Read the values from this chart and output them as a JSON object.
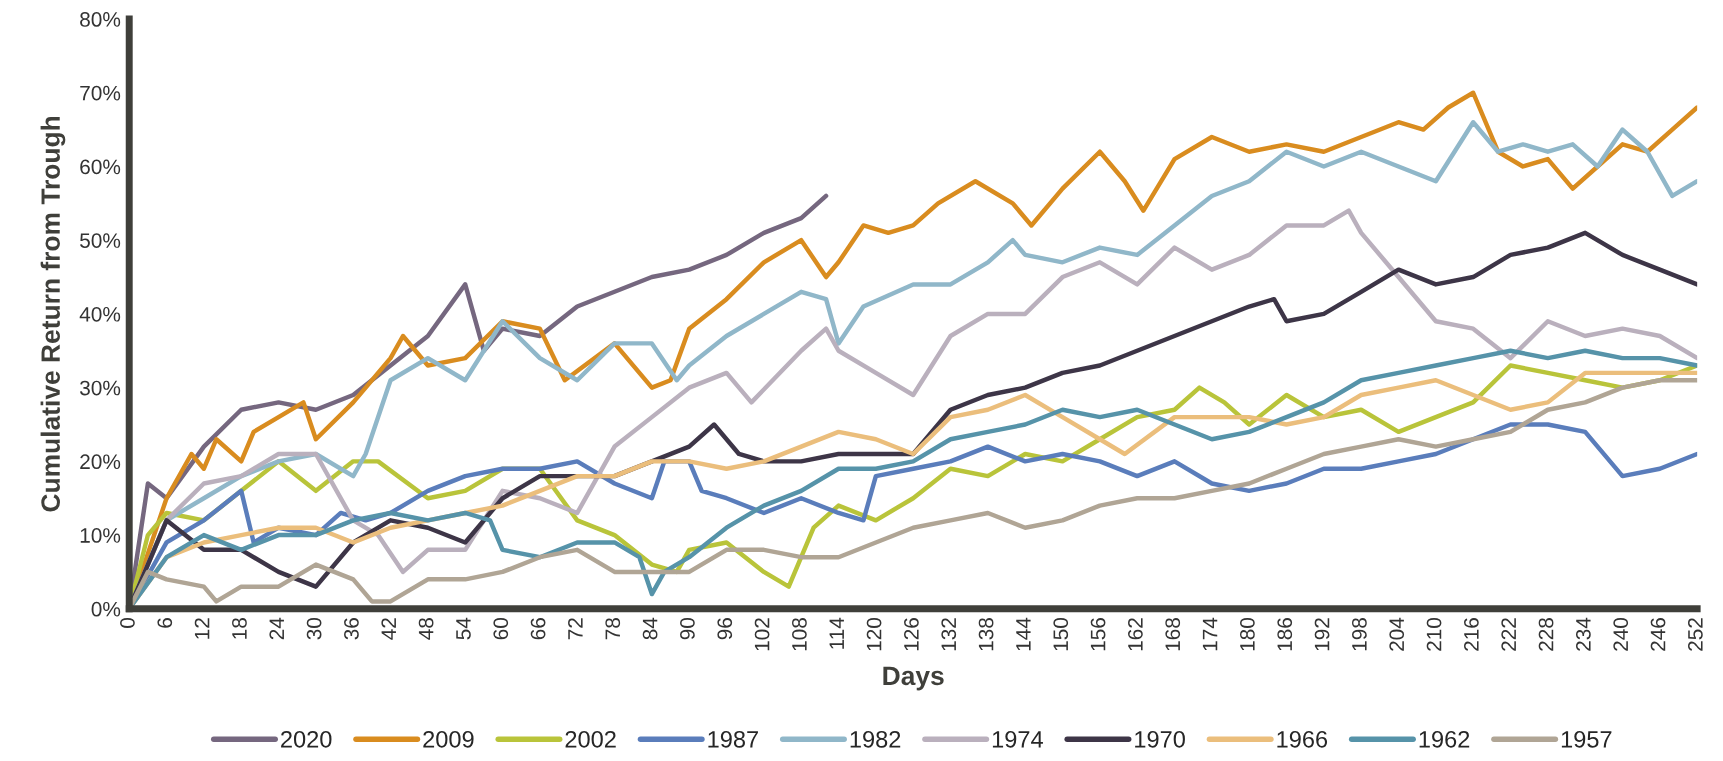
{
  "chart_data": {
    "type": "line",
    "xlabel": "Days",
    "ylabel": "Cumulative Return from Trough",
    "xlim": [
      0,
      252
    ],
    "xticks": [
      0,
      6,
      12,
      18,
      24,
      30,
      36,
      42,
      48,
      54,
      60,
      66,
      72,
      78,
      84,
      90,
      96,
      102,
      108,
      114,
      120,
      126,
      132,
      138,
      144,
      150,
      156,
      162,
      168,
      174,
      180,
      186,
      192,
      198,
      204,
      210,
      216,
      222,
      228,
      234,
      240,
      246,
      252
    ],
    "ylim": [
      0,
      80
    ],
    "yticks": [
      {
        "value": 0,
        "label": "0%"
      },
      {
        "value": 10,
        "label": "10%"
      },
      {
        "value": 20,
        "label": "20%"
      },
      {
        "value": 30,
        "label": "30%"
      },
      {
        "value": 40,
        "label": "40%"
      },
      {
        "value": 50,
        "label": "50%"
      },
      {
        "value": 60,
        "label": "60%"
      },
      {
        "value": 70,
        "label": "70%"
      },
      {
        "value": 80,
        "label": "80%"
      }
    ],
    "grid": false,
    "legend": "bottom",
    "marker": "none",
    "line_style": "solid",
    "series": [
      {
        "name": "2020",
        "color": "#75677f",
        "x": [
          0,
          3,
          6,
          12,
          18,
          24,
          30,
          36,
          42,
          48,
          54,
          57,
          60,
          66,
          72,
          78,
          84,
          90,
          96,
          102,
          108,
          112
        ],
        "values": [
          0,
          17,
          15,
          22,
          27,
          28,
          27,
          29,
          33,
          37,
          44,
          35,
          38,
          37,
          41,
          43,
          45,
          46,
          48,
          51,
          53,
          56
        ]
      },
      {
        "name": "2009",
        "color": "#d98c1f",
        "x": [
          0,
          6,
          10,
          12,
          14,
          18,
          20,
          24,
          28,
          30,
          36,
          42,
          44,
          48,
          54,
          60,
          66,
          70,
          78,
          84,
          87,
          90,
          96,
          102,
          108,
          112,
          114,
          118,
          122,
          126,
          130,
          136,
          142,
          145,
          150,
          156,
          160,
          163,
          168,
          174,
          180,
          186,
          192,
          198,
          204,
          208,
          212,
          216,
          220,
          224,
          228,
          232,
          236,
          240,
          244,
          248,
          252
        ],
        "values": [
          0,
          15,
          21,
          19,
          23,
          20,
          24,
          26,
          28,
          23,
          28,
          34,
          37,
          33,
          34,
          39,
          38,
          31,
          36,
          30,
          31,
          38,
          42,
          47,
          50,
          45,
          47,
          52,
          51,
          52,
          55,
          58,
          55,
          52,
          57,
          62,
          58,
          54,
          61,
          64,
          62,
          63,
          62,
          64,
          66,
          65,
          68,
          70,
          62,
          60,
          61,
          57,
          60,
          63,
          62,
          65,
          68
        ]
      },
      {
        "name": "2002",
        "color": "#b9c43a",
        "x": [
          0,
          3,
          6,
          12,
          18,
          24,
          30,
          36,
          40,
          48,
          54,
          60,
          66,
          72,
          78,
          84,
          88,
          90,
          96,
          102,
          106,
          110,
          114,
          120,
          126,
          132,
          138,
          144,
          150,
          156,
          162,
          168,
          172,
          176,
          180,
          186,
          192,
          198,
          204,
          210,
          216,
          222,
          228,
          234,
          240,
          246,
          252
        ],
        "values": [
          0,
          10,
          13,
          12,
          16,
          20,
          16,
          20,
          20,
          15,
          16,
          19,
          19,
          12,
          10,
          6,
          5,
          8,
          9,
          5,
          3,
          11,
          14,
          12,
          15,
          19,
          18,
          21,
          20,
          23,
          26,
          27,
          30,
          28,
          25,
          29,
          26,
          27,
          24,
          26,
          28,
          33,
          32,
          31,
          30,
          31,
          33
        ]
      },
      {
        "name": "1987",
        "color": "#5a7dbb",
        "x": [
          0,
          6,
          12,
          18,
          20,
          24,
          30,
          34,
          38,
          42,
          48,
          54,
          60,
          66,
          72,
          78,
          84,
          86,
          90,
          92,
          96,
          102,
          108,
          114,
          118,
          120,
          126,
          132,
          138,
          144,
          150,
          156,
          162,
          168,
          174,
          180,
          186,
          192,
          198,
          204,
          210,
          216,
          222,
          228,
          234,
          240,
          246,
          252
        ],
        "values": [
          0,
          9,
          12,
          16,
          9,
          11,
          10,
          13,
          12,
          13,
          16,
          18,
          19,
          19,
          20,
          17,
          15,
          20,
          20,
          16,
          15,
          13,
          15,
          13,
          12,
          18,
          19,
          20,
          22,
          20,
          21,
          20,
          18,
          20,
          17,
          16,
          17,
          19,
          19,
          20,
          21,
          23,
          25,
          25,
          24,
          18,
          19,
          21
        ]
      },
      {
        "name": "1982",
        "color": "#90b7c9",
        "x": [
          0,
          6,
          12,
          18,
          24,
          30,
          36,
          38,
          42,
          48,
          54,
          60,
          66,
          72,
          78,
          84,
          88,
          90,
          96,
          102,
          108,
          112,
          114,
          118,
          126,
          132,
          138,
          142,
          144,
          150,
          156,
          162,
          168,
          174,
          180,
          186,
          192,
          198,
          204,
          210,
          216,
          220,
          224,
          228,
          232,
          236,
          240,
          244,
          248,
          252
        ],
        "values": [
          0,
          12,
          15,
          18,
          20,
          21,
          18,
          21,
          31,
          34,
          31,
          39,
          34,
          31,
          36,
          36,
          31,
          33,
          37,
          40,
          43,
          42,
          36,
          41,
          44,
          44,
          47,
          50,
          48,
          47,
          49,
          48,
          52,
          56,
          58,
          62,
          60,
          62,
          60,
          58,
          66,
          62,
          63,
          62,
          63,
          60,
          65,
          62,
          56,
          58
        ]
      },
      {
        "name": "1974",
        "color": "#bab0bd",
        "x": [
          0,
          6,
          12,
          18,
          24,
          30,
          36,
          40,
          44,
          48,
          54,
          60,
          66,
          72,
          78,
          84,
          90,
          96,
          100,
          108,
          112,
          114,
          120,
          126,
          132,
          138,
          144,
          150,
          156,
          162,
          168,
          174,
          180,
          186,
          192,
          196,
          198,
          204,
          210,
          216,
          222,
          228,
          234,
          240,
          246,
          252
        ],
        "values": [
          0,
          12,
          17,
          18,
          21,
          21,
          12,
          10,
          5,
          8,
          8,
          16,
          15,
          13,
          22,
          26,
          30,
          32,
          28,
          35,
          38,
          35,
          32,
          29,
          37,
          40,
          40,
          45,
          47,
          44,
          49,
          46,
          48,
          52,
          52,
          54,
          51,
          45,
          39,
          38,
          34,
          39,
          37,
          38,
          37,
          34
        ]
      },
      {
        "name": "1970",
        "color": "#3d3547",
        "x": [
          0,
          6,
          12,
          18,
          24,
          30,
          36,
          42,
          48,
          54,
          60,
          66,
          72,
          78,
          84,
          90,
          94,
          98,
          102,
          108,
          114,
          120,
          126,
          132,
          138,
          144,
          150,
          156,
          162,
          168,
          174,
          180,
          184,
          186,
          192,
          198,
          204,
          210,
          216,
          222,
          228,
          234,
          240,
          246,
          252
        ],
        "values": [
          0,
          12,
          8,
          8,
          5,
          3,
          9,
          12,
          11,
          9,
          15,
          18,
          18,
          18,
          20,
          22,
          25,
          21,
          20,
          20,
          21,
          21,
          21,
          27,
          29,
          30,
          32,
          33,
          35,
          37,
          39,
          41,
          42,
          39,
          40,
          43,
          46,
          44,
          45,
          48,
          49,
          51,
          48,
          46,
          44
        ]
      },
      {
        "name": "1966",
        "color": "#ebbe7c",
        "x": [
          0,
          6,
          12,
          18,
          24,
          30,
          36,
          42,
          48,
          54,
          60,
          66,
          72,
          78,
          84,
          90,
          96,
          102,
          108,
          114,
          120,
          126,
          132,
          138,
          144,
          150,
          156,
          160,
          168,
          174,
          180,
          186,
          192,
          198,
          204,
          210,
          216,
          222,
          228,
          234,
          240,
          246,
          252
        ],
        "values": [
          0,
          7,
          9,
          10,
          11,
          11,
          9,
          11,
          12,
          13,
          14,
          16,
          18,
          18,
          20,
          20,
          19,
          20,
          22,
          24,
          23,
          21,
          26,
          27,
          29,
          26,
          23,
          21,
          26,
          26,
          26,
          25,
          26,
          29,
          30,
          31,
          29,
          27,
          28,
          32,
          32,
          32,
          32
        ]
      },
      {
        "name": "1962",
        "color": "#5693a9",
        "x": [
          0,
          6,
          12,
          18,
          24,
          30,
          36,
          42,
          48,
          54,
          58,
          60,
          66,
          72,
          78,
          82,
          84,
          86,
          90,
          96,
          102,
          108,
          114,
          120,
          126,
          132,
          138,
          144,
          150,
          156,
          162,
          168,
          174,
          180,
          186,
          192,
          198,
          204,
          210,
          216,
          222,
          228,
          234,
          240,
          246,
          252
        ],
        "values": [
          0,
          7,
          10,
          8,
          10,
          10,
          12,
          13,
          12,
          13,
          12,
          8,
          7,
          9,
          9,
          7,
          2,
          5,
          7,
          11,
          14,
          16,
          19,
          19,
          20,
          23,
          24,
          25,
          27,
          26,
          27,
          25,
          23,
          24,
          26,
          28,
          31,
          32,
          33,
          34,
          35,
          34,
          35,
          34,
          34,
          33
        ]
      },
      {
        "name": "1957",
        "color": "#b0a595",
        "x": [
          0,
          3,
          6,
          12,
          14,
          18,
          24,
          30,
          36,
          39,
          42,
          48,
          54,
          60,
          66,
          72,
          78,
          84,
          90,
          96,
          102,
          108,
          114,
          120,
          126,
          132,
          138,
          144,
          150,
          156,
          162,
          168,
          174,
          180,
          186,
          192,
          198,
          204,
          210,
          216,
          222,
          228,
          234,
          240,
          246,
          252
        ],
        "values": [
          0,
          5,
          4,
          3,
          1,
          3,
          3,
          6,
          4,
          1,
          1,
          4,
          4,
          5,
          7,
          8,
          5,
          5,
          5,
          8,
          8,
          7,
          7,
          9,
          11,
          12,
          13,
          11,
          12,
          14,
          15,
          15,
          16,
          17,
          19,
          21,
          22,
          23,
          22,
          23,
          24,
          27,
          28,
          30,
          31,
          31
        ]
      }
    ]
  }
}
